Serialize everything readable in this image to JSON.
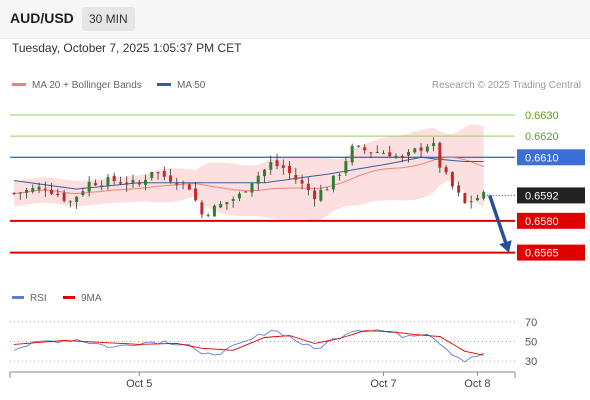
{
  "header": {
    "pair": "AUD/USD",
    "timeframe": "30 MIN"
  },
  "datetime": "Tuesday, October 7, 2025 1:05:37 PM CET",
  "legend": {
    "ma20_label": "MA 20 + Bollinger Bands",
    "ma50_label": "MA 50",
    "ma20_color": "#f08080",
    "ma50_color": "#3a5a9b"
  },
  "credit": "Research © 2025 Trading Central",
  "rsi_legend": {
    "rsi_label": "RSI",
    "ma_label": "9MA",
    "rsi_color": "#5b7fd6",
    "ma_color": "#e00000"
  },
  "colors": {
    "up": "#2e7d32",
    "down": "#c62828",
    "resistance": "#9ccc65",
    "support": "#e00000",
    "pivot": "#3b6fd4",
    "arrow": "#2a4f99"
  },
  "chart_data": {
    "type": "candlestick",
    "ylim": [
      0.6553,
      0.6638
    ],
    "x_ticks": [
      "Oct 5",
      "Oct 7",
      "Oct 8"
    ],
    "x_tick_positions": [
      20,
      59,
      74
    ],
    "n_bars": 80,
    "last_price": "0.6592",
    "levels": [
      {
        "value": 0.663,
        "label": "0.6630",
        "kind": "resistance"
      },
      {
        "value": 0.662,
        "label": "0.6620",
        "kind": "resistance"
      },
      {
        "value": 0.661,
        "label": "0.6610",
        "kind": "pivot"
      },
      {
        "value": 0.658,
        "label": "0.6580",
        "kind": "support"
      },
      {
        "value": 0.6565,
        "label": "0.6565",
        "kind": "support"
      }
    ],
    "projection": {
      "from": [
        75,
        0.6592
      ],
      "to": [
        80,
        0.6565
      ]
    },
    "price_anchors": [
      [
        0,
        0.6593
      ],
      [
        5,
        0.6596
      ],
      [
        9,
        0.6589
      ],
      [
        12,
        0.6598
      ],
      [
        16,
        0.6599
      ],
      [
        20,
        0.6597
      ],
      [
        22,
        0.6604
      ],
      [
        24,
        0.6601
      ],
      [
        26,
        0.6599
      ],
      [
        28,
        0.6596
      ],
      [
        30,
        0.6583
      ],
      [
        32,
        0.6586
      ],
      [
        34,
        0.6589
      ],
      [
        36,
        0.6592
      ],
      [
        38,
        0.6599
      ],
      [
        40,
        0.6604
      ],
      [
        41,
        0.6607
      ],
      [
        43,
        0.6605
      ],
      [
        46,
        0.6597
      ],
      [
        48,
        0.6592
      ],
      [
        50,
        0.6596
      ],
      [
        52,
        0.6603
      ],
      [
        53,
        0.6609
      ],
      [
        54,
        0.6614
      ],
      [
        57,
        0.6613
      ],
      [
        60,
        0.6612
      ],
      [
        62,
        0.6609
      ],
      [
        64,
        0.6613
      ],
      [
        66,
        0.6616
      ],
      [
        67,
        0.6615
      ],
      [
        68,
        0.6606
      ],
      [
        70,
        0.6596
      ],
      [
        72,
        0.6588
      ],
      [
        74,
        0.6591
      ],
      [
        75,
        0.6592
      ]
    ],
    "ma50_anchors": [
      [
        0,
        0.6599
      ],
      [
        10,
        0.6595
      ],
      [
        20,
        0.6598
      ],
      [
        30,
        0.6598
      ],
      [
        40,
        0.6598
      ],
      [
        50,
        0.6602
      ],
      [
        60,
        0.6607
      ],
      [
        65,
        0.661
      ],
      [
        68,
        0.6609
      ],
      [
        72,
        0.6608
      ],
      [
        75,
        0.6608
      ]
    ],
    "rsi": {
      "ylim": [
        25,
        80
      ],
      "ticks": [
        70,
        50,
        30
      ],
      "rsi_anchors": [
        [
          0,
          43
        ],
        [
          5,
          50
        ],
        [
          10,
          52
        ],
        [
          16,
          44
        ],
        [
          20,
          49
        ],
        [
          24,
          50
        ],
        [
          28,
          47
        ],
        [
          30,
          35
        ],
        [
          34,
          41
        ],
        [
          38,
          52
        ],
        [
          41,
          62
        ],
        [
          43,
          58
        ],
        [
          46,
          48
        ],
        [
          48,
          42
        ],
        [
          52,
          55
        ],
        [
          54,
          62
        ],
        [
          58,
          62
        ],
        [
          62,
          56
        ],
        [
          66,
          59
        ],
        [
          68,
          49
        ],
        [
          70,
          38
        ],
        [
          72,
          30
        ],
        [
          74,
          35
        ],
        [
          75,
          38
        ]
      ],
      "ma_anchors": [
        [
          0,
          47
        ],
        [
          8,
          51
        ],
        [
          14,
          49
        ],
        [
          20,
          47
        ],
        [
          26,
          48
        ],
        [
          30,
          43
        ],
        [
          35,
          41
        ],
        [
          40,
          54
        ],
        [
          44,
          56
        ],
        [
          48,
          48
        ],
        [
          52,
          53
        ],
        [
          56,
          61
        ],
        [
          60,
          60
        ],
        [
          64,
          57
        ],
        [
          68,
          55
        ],
        [
          72,
          40
        ],
        [
          75,
          36
        ]
      ]
    }
  }
}
